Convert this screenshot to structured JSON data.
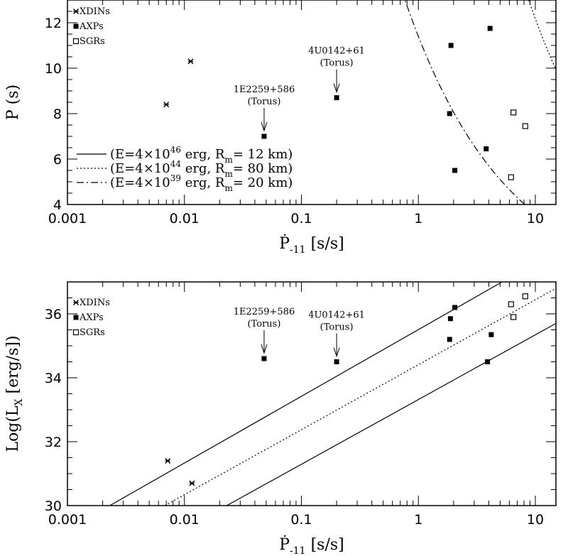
{
  "chart_data": [
    {
      "type": "scatter",
      "xscale": "log",
      "xlim": [
        0.001,
        15
      ],
      "ylim": [
        4,
        13
      ],
      "xlabel": "Ṗ",
      "xlabel_sub": "-11",
      "xlabel_units": " [s/s]",
      "ylabel": "P (s)",
      "grid": false,
      "x_ticks": [
        {
          "value": 0.001,
          "label": "0.001"
        },
        {
          "value": 0.01,
          "label": "0.01"
        },
        {
          "value": 0.1,
          "label": "0.1"
        },
        {
          "value": 1,
          "label": "1"
        },
        {
          "value": 10,
          "label": "10"
        }
      ],
      "y_ticks": [
        {
          "value": 4,
          "label": "4"
        },
        {
          "value": 6,
          "label": "6"
        },
        {
          "value": 8,
          "label": "8"
        },
        {
          "value": 10,
          "label": "10"
        },
        {
          "value": 12,
          "label": "12"
        }
      ],
      "legend": [
        "XDINs",
        "AXPs",
        "SGRs"
      ],
      "legend_position": "top-left",
      "series": [
        {
          "name": "XDINs",
          "marker": "star",
          "points": [
            [
              0.007,
              8.4
            ],
            [
              0.0113,
              10.3
            ]
          ]
        },
        {
          "name": "AXPs",
          "marker": "filled-square",
          "points": [
            [
              0.048,
              7.0
            ],
            [
              0.2,
              8.7
            ],
            [
              1.9,
              11.0
            ],
            [
              1.85,
              8.0
            ],
            [
              2.05,
              5.5
            ],
            [
              3.8,
              6.45
            ],
            [
              4.1,
              11.75
            ]
          ]
        },
        {
          "name": "SGRs",
          "marker": "open-square",
          "points": [
            [
              6.2,
              5.2
            ],
            [
              6.5,
              8.05
            ],
            [
              8.2,
              7.45
            ]
          ]
        }
      ],
      "curves": [
        {
          "style": "solid",
          "E_mant": "4",
          "E_exp": "46",
          "Rm_km": "12",
          "K": 78.0
        },
        {
          "style": "dotted",
          "E_mant": "4",
          "E_exp": "44",
          "Rm_km": "80",
          "K": 38.5
        },
        {
          "style": "dashdot",
          "E_mant": "4",
          "E_exp": "39",
          "Rm_km": "20",
          "K": 11.4
        }
      ],
      "curve_label_parts": [
        "(E=4×10",
        " erg, R",
        "=  ",
        " km)"
      ],
      "curve_label_sub": "m",
      "annotations": [
        {
          "line1": "1E2259+586",
          "line2": "(Torus)",
          "x": 0.048,
          "y": 7.0
        },
        {
          "line1": "4U0142+61",
          "line2": "(Torus)",
          "x": 0.2,
          "y": 8.7
        }
      ]
    },
    {
      "type": "scatter",
      "xscale": "log",
      "xlim": [
        0.001,
        15
      ],
      "ylim": [
        30,
        37
      ],
      "xlabel": "Ṗ",
      "xlabel_sub": "-11",
      "xlabel_units": " [s/s]",
      "ylabel": "Log(L",
      "ylabel_sub": "X",
      "ylabel_units": " [erg/s])",
      "grid": false,
      "x_ticks": [
        {
          "value": 0.001,
          "label": "0.001"
        },
        {
          "value": 0.01,
          "label": "0.01"
        },
        {
          "value": 0.1,
          "label": "0.1"
        },
        {
          "value": 1,
          "label": "1"
        },
        {
          "value": 10,
          "label": "10"
        }
      ],
      "y_ticks": [
        {
          "value": 30,
          "label": "30"
        },
        {
          "value": 32,
          "label": "32"
        },
        {
          "value": 34,
          "label": "34"
        },
        {
          "value": 36,
          "label": "36"
        }
      ],
      "legend": [
        "XDINs",
        "AXPs",
        "SGRs"
      ],
      "legend_position": "top-left",
      "series": [
        {
          "name": "XDINs",
          "marker": "star",
          "points": [
            [
              0.0072,
              31.4
            ],
            [
              0.0116,
              30.7
            ]
          ]
        },
        {
          "name": "AXPs",
          "marker": "filled-square",
          "points": [
            [
              0.048,
              34.6
            ],
            [
              0.2,
              34.5
            ],
            [
              1.88,
              35.85
            ],
            [
              2.05,
              36.2
            ],
            [
              1.85,
              35.2
            ],
            [
              4.2,
              35.35
            ],
            [
              3.9,
              34.5
            ]
          ]
        },
        {
          "name": "SGRs",
          "marker": "open-square",
          "points": [
            [
              6.2,
              36.3
            ],
            [
              6.5,
              35.9
            ],
            [
              8.2,
              36.55
            ]
          ]
        }
      ],
      "lines": [
        {
          "style": "solid",
          "x0": 0.0023,
          "y0": 30,
          "x1": 5.2,
          "y1": 37
        },
        {
          "style": "dotted",
          "x0": 0.0068,
          "y0": 30,
          "x1": 15,
          "y1": 36.8
        },
        {
          "style": "solid",
          "x0": 0.023,
          "y0": 30,
          "x1": 15,
          "y1": 35.7
        }
      ],
      "annotations": [
        {
          "line1": "1E2259+586",
          "line2": "(Torus)",
          "x": 0.048,
          "y": 34.6
        },
        {
          "line1": "4U0142+61",
          "line2": "(Torus)",
          "x": 0.2,
          "y": 34.5
        }
      ]
    }
  ]
}
